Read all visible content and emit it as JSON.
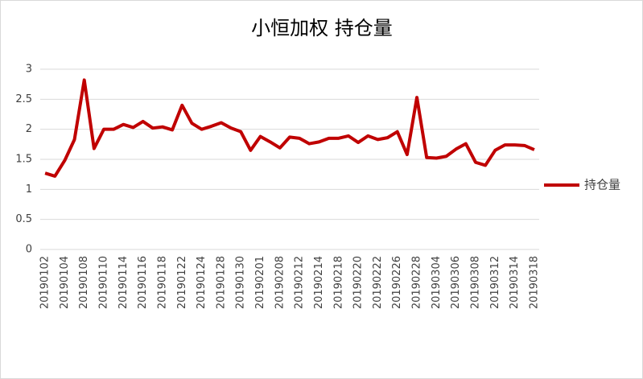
{
  "chart_data": {
    "type": "line",
    "title": "小恒加权 持仓量",
    "categories": [
      "20190102",
      null,
      "20190104",
      null,
      "20190108",
      null,
      "20190110",
      null,
      "20190114",
      null,
      "20190116",
      null,
      "20190118",
      null,
      "20190122",
      null,
      "20190124",
      null,
      "20190128",
      null,
      "20190130",
      null,
      "20190201",
      null,
      "20190208",
      null,
      "20190212",
      null,
      "20190214",
      null,
      "20190218",
      null,
      "20190220",
      null,
      "20190222",
      null,
      "20190226",
      null,
      "20190228",
      null,
      "20190304",
      null,
      "20190306",
      null,
      "20190308",
      null,
      "20190312",
      null,
      "20190314",
      null,
      "20190318"
    ],
    "series": [
      {
        "name": "持仓量",
        "color": "#c00000",
        "values": [
          1.27,
          1.22,
          1.48,
          1.83,
          2.82,
          1.68,
          2.0,
          2.0,
          2.08,
          2.03,
          2.13,
          2.02,
          2.04,
          1.99,
          2.4,
          2.1,
          2.0,
          2.05,
          2.11,
          2.02,
          1.96,
          1.65,
          1.88,
          1.79,
          1.69,
          1.87,
          1.85,
          1.76,
          1.79,
          1.85,
          1.85,
          1.89,
          1.78,
          1.89,
          1.83,
          1.86,
          1.96,
          1.58,
          2.53,
          1.53,
          1.52,
          1.55,
          1.67,
          1.76,
          1.45,
          1.4,
          1.65,
          1.74,
          1.74,
          1.73,
          1.66
        ]
      }
    ],
    "ylim": [
      0,
      3
    ],
    "yticks": [
      0,
      0.5,
      1,
      1.5,
      2,
      2.5,
      3
    ],
    "grid": true,
    "legend": "right"
  }
}
